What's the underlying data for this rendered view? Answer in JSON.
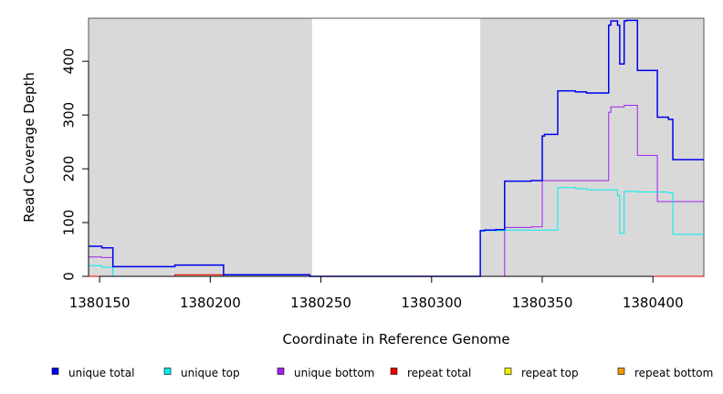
{
  "chart_data": {
    "type": "line",
    "title": "",
    "xlabel": "Coordinate in Reference Genome",
    "ylabel": "Read Coverage Depth",
    "xlim": [
      1380145,
      1380423
    ],
    "ylim": [
      0,
      480
    ],
    "x_ticks": [
      1380150,
      1380200,
      1380250,
      1380300,
      1380350,
      1380400
    ],
    "x_tick_labels": [
      "1380150",
      "1380200",
      "1380250",
      "1380300",
      "1380350",
      "1380400"
    ],
    "y_ticks": [
      0,
      100,
      200,
      300,
      400
    ],
    "y_tick_labels": [
      "0",
      "100",
      "200",
      "300",
      "400"
    ],
    "shaded_regions": [
      [
        1380145,
        1380246
      ],
      [
        1380322,
        1380423
      ]
    ],
    "shade_color": "#d9d9d9",
    "grid": false,
    "legend_position": "bottom",
    "series": [
      {
        "name": "unique total",
        "color": "#0000ee",
        "values": [
          [
            1380145,
            56
          ],
          [
            1380151,
            56
          ],
          [
            1380151,
            53
          ],
          [
            1380156,
            53
          ],
          [
            1380156,
            18
          ],
          [
            1380184,
            18
          ],
          [
            1380184,
            21
          ],
          [
            1380206,
            21
          ],
          [
            1380206,
            3
          ],
          [
            1380245,
            3
          ],
          [
            1380245,
            0
          ],
          [
            1380322,
            0
          ],
          [
            1380322,
            85
          ],
          [
            1380324,
            85
          ],
          [
            1380324,
            86
          ],
          [
            1380329,
            86
          ],
          [
            1380329,
            87
          ],
          [
            1380333,
            87
          ],
          [
            1380333,
            177
          ],
          [
            1380345,
            177
          ],
          [
            1380345,
            178
          ],
          [
            1380350,
            178
          ],
          [
            1380350,
            261
          ],
          [
            1380351,
            261
          ],
          [
            1380351,
            264
          ],
          [
            1380357,
            264
          ],
          [
            1380357,
            345
          ],
          [
            1380365,
            345
          ],
          [
            1380365,
            343
          ],
          [
            1380370,
            343
          ],
          [
            1380370,
            341
          ],
          [
            1380380,
            341
          ],
          [
            1380380,
            467
          ],
          [
            1380381,
            467
          ],
          [
            1380381,
            475
          ],
          [
            1380384,
            475
          ],
          [
            1380384,
            467
          ],
          [
            1380385,
            467
          ],
          [
            1380385,
            395
          ],
          [
            1380387,
            395
          ],
          [
            1380387,
            475
          ],
          [
            1380388,
            475
          ],
          [
            1380388,
            476
          ],
          [
            1380393,
            476
          ],
          [
            1380393,
            383
          ],
          [
            1380402,
            383
          ],
          [
            1380402,
            296
          ],
          [
            1380407,
            296
          ],
          [
            1380407,
            292
          ],
          [
            1380409,
            292
          ],
          [
            1380409,
            217
          ],
          [
            1380423,
            217
          ]
        ]
      },
      {
        "name": "unique top",
        "color": "#00eeee",
        "values": [
          [
            1380145,
            20
          ],
          [
            1380151,
            20
          ],
          [
            1380151,
            17
          ],
          [
            1380156,
            17
          ],
          [
            1380156,
            0
          ],
          [
            1380322,
            0
          ],
          [
            1380322,
            84
          ],
          [
            1380324,
            84
          ],
          [
            1380324,
            85
          ],
          [
            1380333,
            85
          ],
          [
            1380333,
            86
          ],
          [
            1380357,
            86
          ],
          [
            1380357,
            165
          ],
          [
            1380365,
            165
          ],
          [
            1380365,
            163
          ],
          [
            1380370,
            163
          ],
          [
            1380370,
            161
          ],
          [
            1380384,
            161
          ],
          [
            1380384,
            150
          ],
          [
            1380385,
            150
          ],
          [
            1380385,
            80
          ],
          [
            1380387,
            80
          ],
          [
            1380387,
            158
          ],
          [
            1380393,
            158
          ],
          [
            1380393,
            157
          ],
          [
            1380407,
            157
          ],
          [
            1380407,
            155
          ],
          [
            1380409,
            155
          ],
          [
            1380409,
            78
          ],
          [
            1380423,
            78
          ]
        ]
      },
      {
        "name": "unique bottom",
        "color": "#a020f0",
        "values": [
          [
            1380145,
            36
          ],
          [
            1380151,
            36
          ],
          [
            1380151,
            35
          ],
          [
            1380156,
            35
          ],
          [
            1380156,
            18
          ],
          [
            1380184,
            18
          ],
          [
            1380184,
            21
          ],
          [
            1380206,
            21
          ],
          [
            1380206,
            3
          ],
          [
            1380245,
            3
          ],
          [
            1380245,
            0
          ],
          [
            1380333,
            0
          ],
          [
            1380333,
            91
          ],
          [
            1380345,
            91
          ],
          [
            1380345,
            92
          ],
          [
            1380350,
            92
          ],
          [
            1380350,
            178
          ],
          [
            1380380,
            178
          ],
          [
            1380380,
            305
          ],
          [
            1380381,
            305
          ],
          [
            1380381,
            315
          ],
          [
            1380387,
            315
          ],
          [
            1380387,
            318
          ],
          [
            1380393,
            318
          ],
          [
            1380393,
            225
          ],
          [
            1380402,
            225
          ],
          [
            1380402,
            139
          ],
          [
            1380423,
            139
          ]
        ]
      },
      {
        "name": "repeat total",
        "color": "#ee0000",
        "values": [
          [
            1380145,
            0
          ],
          [
            1380184,
            0
          ],
          [
            1380184,
            3
          ],
          [
            1380206,
            3
          ],
          [
            1380206,
            0
          ],
          [
            1380423,
            0
          ]
        ]
      },
      {
        "name": "repeat top",
        "color": "#eeee00",
        "values": [
          [
            1380145,
            0
          ],
          [
            1380423,
            0
          ]
        ]
      },
      {
        "name": "repeat bottom",
        "color": "#ee9a00",
        "values": [
          [
            1380145,
            0
          ],
          [
            1380184,
            0
          ],
          [
            1380184,
            3
          ],
          [
            1380206,
            3
          ],
          [
            1380206,
            0
          ],
          [
            1380423,
            0
          ]
        ]
      }
    ]
  }
}
